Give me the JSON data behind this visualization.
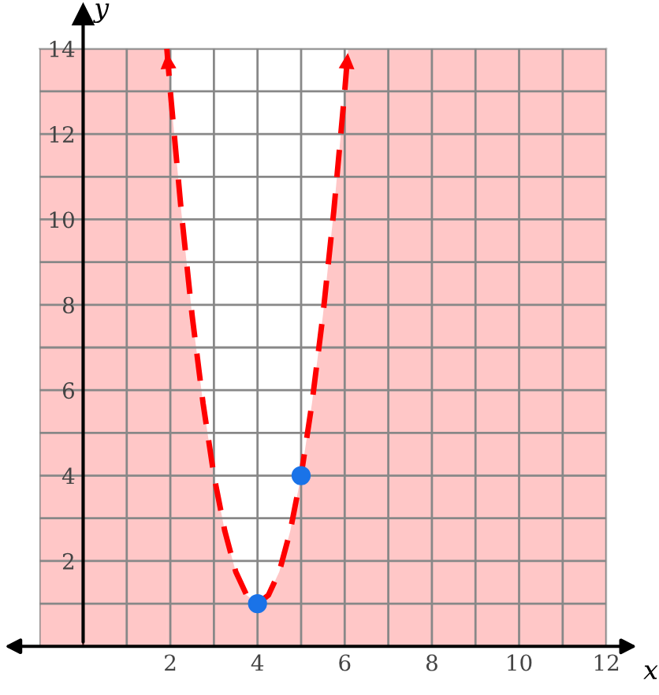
{
  "chart_data": {
    "type": "area",
    "xlabel": "x",
    "ylabel": "y",
    "xlim": [
      -1,
      12
    ],
    "ylim": [
      0,
      14
    ],
    "xticks": [
      {
        "value": -1,
        "label": null
      },
      {
        "value": 1,
        "label": null
      },
      2,
      {
        "value": 3,
        "label": null
      },
      4,
      {
        "value": 5,
        "label": null
      },
      6,
      {
        "value": 7,
        "label": null
      },
      8,
      {
        "value": 9,
        "label": null
      },
      10,
      {
        "value": 11,
        "label": null
      },
      12
    ],
    "yticks": [
      {
        "value": 1,
        "label": null
      },
      2,
      {
        "value": 3,
        "label": null
      },
      4,
      {
        "value": 5,
        "label": null
      },
      6,
      {
        "value": 7,
        "label": null
      },
      8,
      {
        "value": 9,
        "label": null
      },
      10,
      {
        "value": 11,
        "label": null
      },
      12,
      {
        "value": 13,
        "label": null
      },
      14
    ],
    "grid": true,
    "series": [
      {
        "color": "#ff0000",
        "line_style": "dashed",
        "x": [
          1.92,
          2,
          2.25,
          2.5,
          2.75,
          3,
          3.25,
          3.5,
          3.75,
          4,
          4.25,
          4.5,
          4.75,
          5,
          5.25,
          5.5,
          5.75,
          6,
          6.08
        ],
        "values": [
          14,
          13,
          10.2,
          7.75,
          5.7,
          4,
          2.7,
          1.75,
          1.2,
          1,
          1.2,
          1.75,
          2.7,
          4,
          5.7,
          7.75,
          10.2,
          13,
          14
        ]
      },
      {
        "type": "scatter",
        "color": "#1a73e8",
        "marker": "circle",
        "x": [
          4,
          5
        ],
        "values": [
          1,
          4
        ]
      }
    ],
    "bands": [
      {
        "axis": "x",
        "from": -1,
        "to": 1.92,
        "color": "#ff0000"
      },
      {
        "axis": "x",
        "from": 6.08,
        "to": 12,
        "color": "#ff0000"
      }
    ]
  }
}
